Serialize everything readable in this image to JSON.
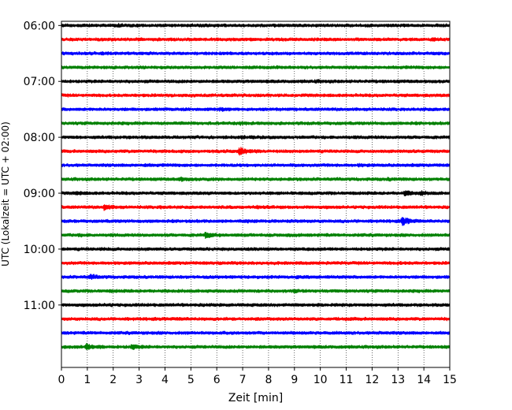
{
  "chart_data": {
    "type": "line",
    "title": "",
    "xlabel": "Zeit  [min]",
    "ylabel": "UTC (Lokalzeit = UTC + 02:00)",
    "xlim": [
      0,
      15
    ],
    "xticks": [
      0,
      1,
      2,
      3,
      4,
      5,
      6,
      7,
      8,
      9,
      10,
      11,
      12,
      13,
      14,
      15
    ],
    "ylim_minutes_utc": [
      355.5,
      727
    ],
    "yticks": [
      {
        "label": "06:00",
        "minutes_utc": 360
      },
      {
        "label": "07:00",
        "minutes_utc": 420
      },
      {
        "label": "08:00",
        "minutes_utc": 480
      },
      {
        "label": "09:00",
        "minutes_utc": 540
      },
      {
        "label": "10:00",
        "minutes_utc": 600
      },
      {
        "label": "11:00",
        "minutes_utc": 660
      }
    ],
    "grid": "vertical dotted at each minute",
    "trace_colors": [
      "#000000",
      "#ff0000",
      "#0000ff",
      "#008000"
    ],
    "traces": [
      {
        "start_utc": "06:00",
        "minutes_utc": 360,
        "color": "#000000",
        "events": [
          {
            "t": 2.2,
            "amp": 0.25
          }
        ]
      },
      {
        "start_utc": "06:15",
        "minutes_utc": 375,
        "color": "#ff0000",
        "events": [
          {
            "t": 3.0,
            "amp": 0.15
          },
          {
            "t": 14.3,
            "amp": 0.3
          }
        ]
      },
      {
        "start_utc": "06:30",
        "minutes_utc": 390,
        "color": "#0000ff",
        "events": [
          {
            "t": 1.6,
            "amp": 0.15
          }
        ]
      },
      {
        "start_utc": "06:45",
        "minutes_utc": 405,
        "color": "#008000",
        "events": []
      },
      {
        "start_utc": "07:00",
        "minutes_utc": 420,
        "color": "#000000",
        "events": [
          {
            "t": 9.8,
            "amp": 0.2
          }
        ]
      },
      {
        "start_utc": "07:15",
        "minutes_utc": 435,
        "color": "#ff0000",
        "events": []
      },
      {
        "start_utc": "07:30",
        "minutes_utc": 450,
        "color": "#0000ff",
        "events": [
          {
            "t": 6.1,
            "amp": 0.35
          },
          {
            "t": 14.0,
            "amp": 0.15
          }
        ]
      },
      {
        "start_utc": "07:45",
        "minutes_utc": 465,
        "color": "#008000",
        "events": [
          {
            "t": 6.9,
            "amp": 0.25
          }
        ]
      },
      {
        "start_utc": "08:00",
        "minutes_utc": 480,
        "color": "#000000",
        "events": [
          {
            "t": 6.9,
            "amp": 0.25
          }
        ]
      },
      {
        "start_utc": "08:15",
        "minutes_utc": 495,
        "color": "#ff0000",
        "events": [
          {
            "t": 6.85,
            "amp": 1.8
          },
          {
            "t": 13.5,
            "amp": 0.15
          }
        ]
      },
      {
        "start_utc": "08:30",
        "minutes_utc": 510,
        "color": "#0000ff",
        "events": [
          {
            "t": 3.2,
            "amp": 0.2
          },
          {
            "t": 11.5,
            "amp": 0.2
          }
        ]
      },
      {
        "start_utc": "08:45",
        "minutes_utc": 525,
        "color": "#008000",
        "events": [
          {
            "t": 4.55,
            "amp": 0.6
          },
          {
            "t": 12.6,
            "amp": 0.25
          }
        ]
      },
      {
        "start_utc": "09:00",
        "minutes_utc": 540,
        "color": "#000000",
        "events": [
          {
            "t": 0.55,
            "amp": 0.5
          },
          {
            "t": 13.25,
            "amp": 0.9
          },
          {
            "t": 13.85,
            "amp": 0.6
          }
        ]
      },
      {
        "start_utc": "09:15",
        "minutes_utc": 555,
        "color": "#ff0000",
        "events": [
          {
            "t": 1.65,
            "amp": 1.1
          },
          {
            "t": 3.8,
            "amp": 0.2
          },
          {
            "t": 7.5,
            "amp": 0.3
          }
        ]
      },
      {
        "start_utc": "09:30",
        "minutes_utc": 570,
        "color": "#0000ff",
        "events": [
          {
            "t": 7.1,
            "amp": 0.25
          },
          {
            "t": 13.15,
            "amp": 1.8
          }
        ]
      },
      {
        "start_utc": "09:45",
        "minutes_utc": 585,
        "color": "#008000",
        "events": [
          {
            "t": 0.6,
            "amp": 0.25
          },
          {
            "t": 5.55,
            "amp": 1.0
          },
          {
            "t": 8.7,
            "amp": 0.4
          }
        ]
      },
      {
        "start_utc": "10:00",
        "minutes_utc": 600,
        "color": "#000000",
        "events": [
          {
            "t": 1.5,
            "amp": 0.15
          }
        ]
      },
      {
        "start_utc": "10:15",
        "minutes_utc": 615,
        "color": "#ff0000",
        "events": [
          {
            "t": 13.0,
            "amp": 0.2
          }
        ]
      },
      {
        "start_utc": "10:30",
        "minutes_utc": 630,
        "color": "#0000ff",
        "events": [
          {
            "t": 1.1,
            "amp": 0.9
          },
          {
            "t": 9.1,
            "amp": 0.3
          }
        ]
      },
      {
        "start_utc": "10:45",
        "minutes_utc": 645,
        "color": "#008000",
        "events": [
          {
            "t": 1.9,
            "amp": 0.15
          },
          {
            "t": 9.0,
            "amp": 0.3
          }
        ]
      },
      {
        "start_utc": "11:00",
        "minutes_utc": 660,
        "color": "#000000",
        "events": [
          {
            "t": 1.7,
            "amp": 0.15
          }
        ]
      },
      {
        "start_utc": "11:15",
        "minutes_utc": 675,
        "color": "#ff0000",
        "events": [
          {
            "t": 4.5,
            "amp": 0.2
          },
          {
            "t": 11.0,
            "amp": 0.15
          }
        ]
      },
      {
        "start_utc": "11:30",
        "minutes_utc": 690,
        "color": "#0000ff",
        "events": [
          {
            "t": 12.2,
            "amp": 0.15
          }
        ]
      },
      {
        "start_utc": "11:45",
        "minutes_utc": 705,
        "color": "#008000",
        "events": [
          {
            "t": 0.95,
            "amp": 1.2
          },
          {
            "t": 2.7,
            "amp": 1.0
          },
          {
            "t": 1.5,
            "amp": 0.3
          }
        ]
      }
    ]
  }
}
